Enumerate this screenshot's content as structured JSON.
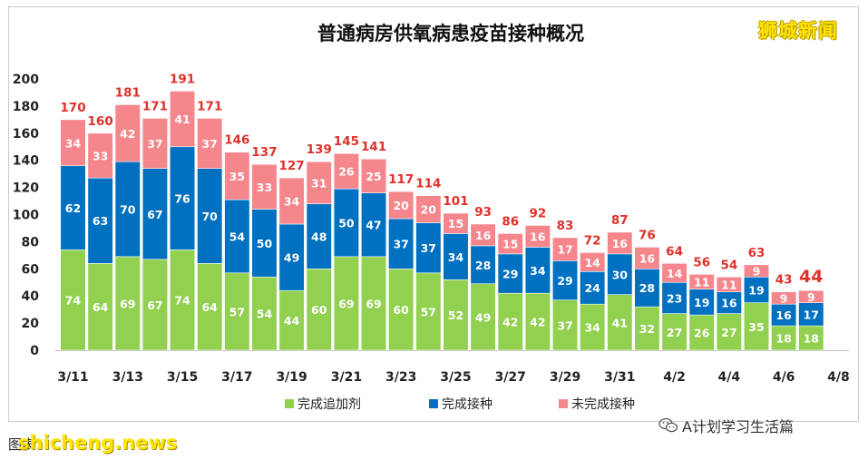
{
  "chart_data": {
    "type": "bar",
    "stacked": true,
    "title": "普通病房供氧病患疫苗接种概况",
    "categories": [
      "3/11",
      "3/12",
      "3/13",
      "3/14",
      "3/15",
      "3/16",
      "3/17",
      "3/18",
      "3/19",
      "3/20",
      "3/21",
      "3/22",
      "3/23",
      "3/24",
      "3/25",
      "3/26",
      "3/27",
      "3/28",
      "3/29",
      "3/30",
      "3/31",
      "4/1",
      "4/2",
      "4/3",
      "4/4",
      "4/5",
      "4/6",
      "4/7"
    ],
    "x_tick_labels": [
      "3/11",
      "3/13",
      "3/15",
      "3/17",
      "3/19",
      "3/21",
      "3/23",
      "3/25",
      "3/27",
      "3/29",
      "3/31",
      "4/2",
      "4/4",
      "4/6",
      "4/8"
    ],
    "series": [
      {
        "name": "完成追加剂",
        "color": "#92d050",
        "values": [
          74,
          64,
          69,
          67,
          74,
          64,
          57,
          54,
          44,
          60,
          69,
          69,
          60,
          57,
          52,
          49,
          42,
          42,
          37,
          34,
          41,
          32,
          27,
          26,
          27,
          35,
          18,
          18
        ]
      },
      {
        "name": "完成接种",
        "color": "#0070c0",
        "values": [
          62,
          63,
          70,
          67,
          76,
          70,
          54,
          50,
          49,
          48,
          50,
          47,
          37,
          37,
          34,
          28,
          29,
          34,
          29,
          24,
          30,
          28,
          23,
          19,
          16,
          19,
          16,
          17
        ]
      },
      {
        "name": "未完成接种",
        "color": "#f4868c",
        "values": [
          34,
          33,
          42,
          37,
          41,
          37,
          35,
          33,
          34,
          31,
          26,
          25,
          20,
          20,
          15,
          16,
          15,
          16,
          17,
          14,
          16,
          16,
          14,
          11,
          11,
          9,
          9,
          9
        ]
      }
    ],
    "totals": [
      170,
      160,
      181,
      171,
      191,
      171,
      146,
      137,
      127,
      139,
      145,
      141,
      117,
      114,
      101,
      93,
      86,
      92,
      83,
      72,
      87,
      76,
      64,
      56,
      54,
      63,
      43,
      44
    ],
    "ylim": [
      0,
      200
    ],
    "yticks": [
      0,
      20,
      40,
      60,
      80,
      100,
      120,
      140,
      160,
      180,
      200
    ],
    "grid": false,
    "legend_position": "bottom",
    "total_label_color": "#e0302a"
  },
  "brand": "狮城新闻",
  "watermark": "A计划学习生活篇",
  "footer": {
    "source": "图表：",
    "site": "shicheng.news"
  }
}
